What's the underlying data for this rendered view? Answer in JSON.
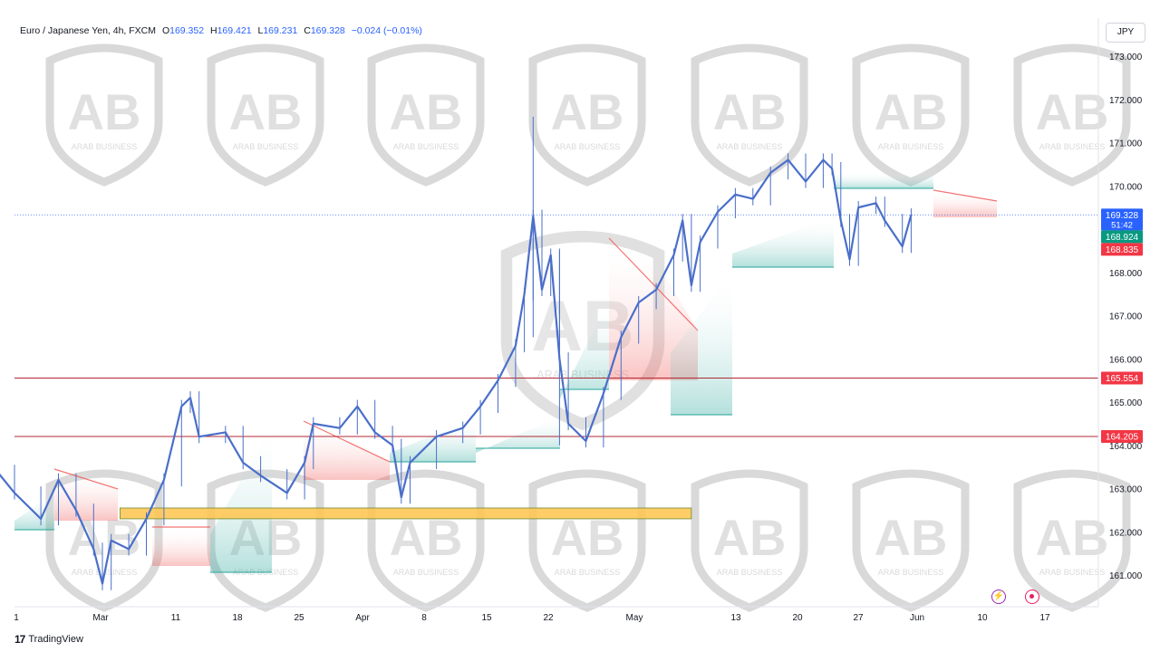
{
  "legend": {
    "symbol": "Euro / Japanese Yen, 4h, FXCM",
    "open_label": "O",
    "open": "169.352",
    "high_label": "H",
    "high": "169.421",
    "low_label": "L",
    "low": "169.231",
    "close_label": "C",
    "close": "169.328",
    "change": "−0.024 (−0.01%)"
  },
  "currency_button": "JPY",
  "footer": {
    "logo": "17",
    "brand": "TradingView"
  },
  "watermark": {
    "brand_line1": "ARAB BUSINESS"
  },
  "icons": [
    "flash-icon",
    "target-icon"
  ],
  "colors": {
    "candle": "#4a6fc9",
    "cloud_up": "#26a69a",
    "cloud_down": "#ef5350",
    "resistance_line": "#b22833",
    "zone_fill": "#ffc44d",
    "last_price_tag": "#2962ff",
    "green_tag": "#089981",
    "red_tag": "#f23645"
  },
  "chart_data": {
    "type": "line",
    "title": "Euro / Japanese Yen, 4h, FXCM",
    "x_ticks": [
      "1",
      "Mar",
      "11",
      "18",
      "25",
      "Apr",
      "8",
      "15",
      "22",
      "May",
      "13",
      "20",
      "27",
      "Jun",
      "10",
      "17"
    ],
    "y_ticks": [
      "173.000",
      "172.000",
      "171.000",
      "170.000",
      "169.000",
      "168.000",
      "167.000",
      "166.000",
      "165.000",
      "164.000",
      "163.000",
      "162.000",
      "161.000"
    ],
    "ylim": [
      160.35,
      173.35
    ],
    "grid": false,
    "price_series": [
      {
        "x": "Feb 26",
        "y": 162.2
      },
      {
        "x": "Feb 28",
        "y": 163.4
      },
      {
        "x": "Mar 1",
        "y": 162.9
      },
      {
        "x": "Mar 4",
        "y": 162.3
      },
      {
        "x": "Mar 6",
        "y": 163.2
      },
      {
        "x": "Mar 8",
        "y": 162.5
      },
      {
        "x": "Mar 10",
        "y": 161.6
      },
      {
        "x": "Mar 11",
        "y": 160.8
      },
      {
        "x": "Mar 12",
        "y": 161.8
      },
      {
        "x": "Mar 14",
        "y": 161.6
      },
      {
        "x": "Mar 16",
        "y": 162.3
      },
      {
        "x": "Mar 18",
        "y": 163.2
      },
      {
        "x": "Mar 20",
        "y": 164.9
      },
      {
        "x": "Mar 21",
        "y": 165.1
      },
      {
        "x": "Mar 22",
        "y": 164.2
      },
      {
        "x": "Mar 25",
        "y": 164.3
      },
      {
        "x": "Mar 27",
        "y": 163.6
      },
      {
        "x": "Mar 29",
        "y": 163.3
      },
      {
        "x": "Apr 1",
        "y": 162.9
      },
      {
        "x": "Apr 3",
        "y": 163.6
      },
      {
        "x": "Apr 4",
        "y": 164.5
      },
      {
        "x": "Apr 7",
        "y": 164.4
      },
      {
        "x": "Apr 9",
        "y": 164.9
      },
      {
        "x": "Apr 11",
        "y": 164.3
      },
      {
        "x": "Apr 13",
        "y": 164.0
      },
      {
        "x": "Apr 14",
        "y": 162.8
      },
      {
        "x": "Apr 15",
        "y": 163.6
      },
      {
        "x": "Apr 18",
        "y": 164.2
      },
      {
        "x": "Apr 21",
        "y": 164.4
      },
      {
        "x": "Apr 23",
        "y": 164.9
      },
      {
        "x": "Apr 25",
        "y": 165.5
      },
      {
        "x": "Apr 27",
        "y": 166.3
      },
      {
        "x": "Apr 28",
        "y": 167.5
      },
      {
        "x": "Apr 29",
        "y": 169.3
      },
      {
        "x": "Apr 30",
        "y": 167.6
      },
      {
        "x": "May 1",
        "y": 168.4
      },
      {
        "x": "May 2",
        "y": 166.0
      },
      {
        "x": "May 3",
        "y": 164.5
      },
      {
        "x": "May 5",
        "y": 164.1
      },
      {
        "x": "May 7",
        "y": 165.2
      },
      {
        "x": "May 9",
        "y": 166.5
      },
      {
        "x": "May 11",
        "y": 167.3
      },
      {
        "x": "May 13",
        "y": 167.6
      },
      {
        "x": "May 15",
        "y": 168.4
      },
      {
        "x": "May 16",
        "y": 169.2
      },
      {
        "x": "May 17",
        "y": 167.7
      },
      {
        "x": "May 18",
        "y": 168.7
      },
      {
        "x": "May 20",
        "y": 169.4
      },
      {
        "x": "May 22",
        "y": 169.8
      },
      {
        "x": "May 24",
        "y": 169.7
      },
      {
        "x": "May 26",
        "y": 170.3
      },
      {
        "x": "May 28",
        "y": 170.6
      },
      {
        "x": "May 30",
        "y": 170.1
      },
      {
        "x": "Jun 1",
        "y": 170.6
      },
      {
        "x": "Jun 2",
        "y": 170.4
      },
      {
        "x": "Jun 3",
        "y": 169.2
      },
      {
        "x": "Jun 4",
        "y": 168.3
      },
      {
        "x": "Jun 5",
        "y": 169.5
      },
      {
        "x": "Jun 7",
        "y": 169.6
      },
      {
        "x": "Jun 8",
        "y": 169.2
      },
      {
        "x": "Jun 10",
        "y": 168.6
      },
      {
        "x": "Jun 11",
        "y": 169.33
      }
    ],
    "spikes": [
      {
        "x": "Apr 29",
        "high": 171.6,
        "low": 166.5
      },
      {
        "x": "May 2",
        "high": 168.5,
        "low": 164.0
      }
    ],
    "support_zone": {
      "from": "Mar 13",
      "to": "May 17",
      "y_top": 162.55,
      "y_bottom": 162.3
    },
    "horizontal_levels": [
      165.554,
      164.205
    ],
    "price_tags": [
      {
        "label": "169.328",
        "sub": "51:42",
        "value": 169.328,
        "kind": "last"
      },
      {
        "label": "168.924",
        "value": 168.924,
        "kind": "green"
      },
      {
        "label": "168.835",
        "value": 168.835,
        "kind": "red"
      },
      {
        "label": "165.554",
        "value": 165.554,
        "kind": "red"
      },
      {
        "label": "164.205",
        "value": 164.205,
        "kind": "red"
      }
    ]
  }
}
